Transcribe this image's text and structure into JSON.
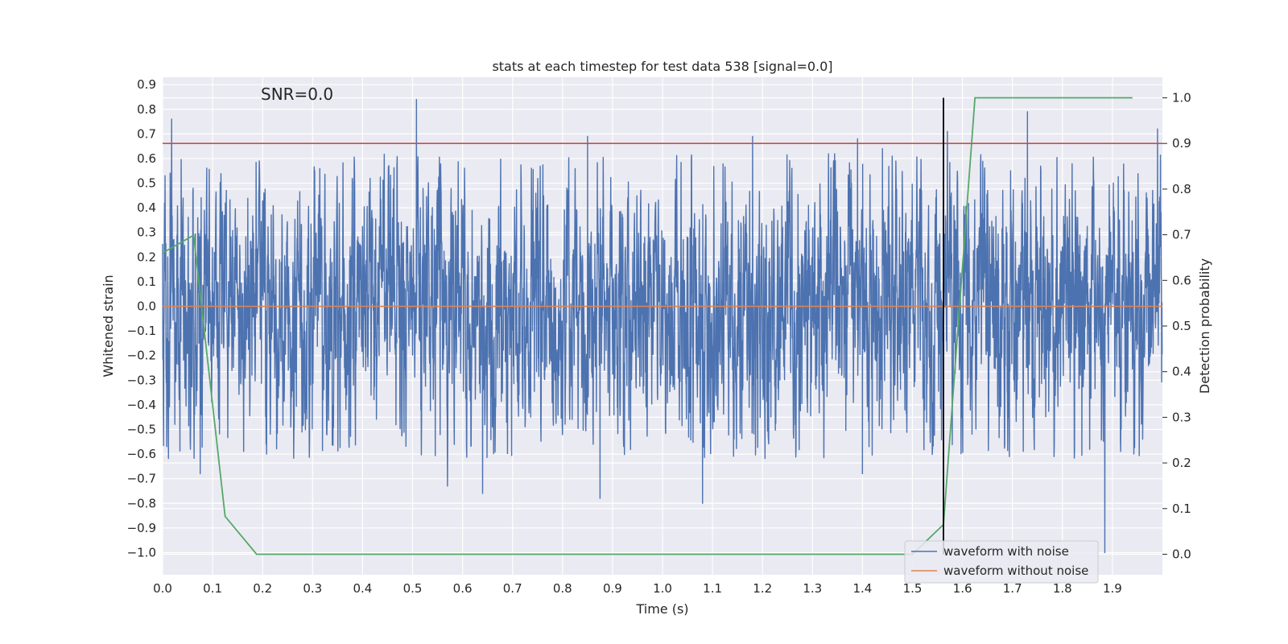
{
  "chart_data": {
    "type": "line",
    "title": "stats at each timestep for test data 538 [signal=0.0]",
    "xlabel": "Time (s)",
    "ylabel": "Whitened strain",
    "y2label": "Detection probability",
    "annotation": "SNR=0.0",
    "xlim": [
      0.0,
      2.0
    ],
    "ylim": [
      -1.09,
      0.93
    ],
    "y2lim": [
      -0.045,
      1.045
    ],
    "xticks": [
      0.0,
      0.1,
      0.2,
      0.3,
      0.4,
      0.5,
      0.6,
      0.7,
      0.8,
      0.9,
      1.0,
      1.1,
      1.2,
      1.3,
      1.4,
      1.5,
      1.6,
      1.7,
      1.8,
      1.9
    ],
    "xtick_labels": [
      "0.0",
      "0.1",
      "0.2",
      "0.3",
      "0.4",
      "0.5",
      "0.6",
      "0.7",
      "0.8",
      "0.9",
      "1.0",
      "1.1",
      "1.2",
      "1.3",
      "1.4",
      "1.5",
      "1.6",
      "1.7",
      "1.8",
      "1.9"
    ],
    "yticks": [
      -1.0,
      -0.9,
      -0.8,
      -0.7,
      -0.6,
      -0.5,
      -0.4,
      -0.3,
      -0.2,
      -0.1,
      0.0,
      0.1,
      0.2,
      0.3,
      0.4,
      0.5,
      0.6,
      0.7,
      0.8,
      0.9
    ],
    "ytick_labels": [
      "−1.0",
      "−0.9",
      "−0.8",
      "−0.7",
      "−0.6",
      "−0.5",
      "−0.4",
      "−0.3",
      "−0.2",
      "−0.1",
      "0.0",
      "0.1",
      "0.2",
      "0.3",
      "0.4",
      "0.5",
      "0.6",
      "0.7",
      "0.8",
      "0.9"
    ],
    "y2ticks": [
      0.0,
      0.1,
      0.2,
      0.3,
      0.4,
      0.5,
      0.6,
      0.7,
      0.8,
      0.9,
      1.0
    ],
    "y2tick_labels": [
      "0.0",
      "0.1",
      "0.2",
      "0.3",
      "0.4",
      "0.5",
      "0.6",
      "0.7",
      "0.8",
      "0.9",
      "1.0"
    ],
    "grid": true,
    "legend_position": "lower-right",
    "series": [
      {
        "name": "waveform with noise",
        "axis": "left",
        "color": "#4c72b0",
        "kind": "noise",
        "sample_rate": 2048,
        "std": 0.25,
        "extremes": [
          [
            0.005,
            0.53
          ],
          [
            0.018,
            0.76
          ],
          [
            0.075,
            -0.68
          ],
          [
            0.508,
            0.84
          ],
          [
            0.57,
            -0.73
          ],
          [
            0.64,
            -0.76
          ],
          [
            0.85,
            0.69
          ],
          [
            0.875,
            -0.78
          ],
          [
            1.08,
            -0.8
          ],
          [
            1.18,
            0.69
          ],
          [
            1.39,
            0.68
          ],
          [
            1.4,
            -0.68
          ],
          [
            1.44,
            0.64
          ],
          [
            1.57,
            0.71
          ],
          [
            1.73,
            0.79
          ],
          [
            1.885,
            -1.0
          ],
          [
            1.99,
            0.72
          ]
        ]
      },
      {
        "name": "waveform without noise",
        "axis": "left",
        "color": "#dd8452",
        "x": [
          0.0,
          2.0
        ],
        "y": [
          0.0,
          0.0
        ]
      },
      {
        "axis": "right",
        "color": "#55a868",
        "x": [
          0.0,
          0.062,
          0.125,
          0.188,
          1.5,
          1.562,
          1.625,
          1.94
        ],
        "y": [
          0.66,
          0.699,
          0.083,
          0.0,
          0.0,
          0.065,
          1.0,
          1.0
        ]
      }
    ],
    "reference_lines": [
      {
        "orientation": "horizontal",
        "axis": "right",
        "value": 0.9,
        "color": "#c44e52"
      },
      {
        "orientation": "vertical",
        "value": 1.562,
        "ymin": 0.0,
        "ymax": 1.0,
        "color": "#000000"
      }
    ]
  }
}
